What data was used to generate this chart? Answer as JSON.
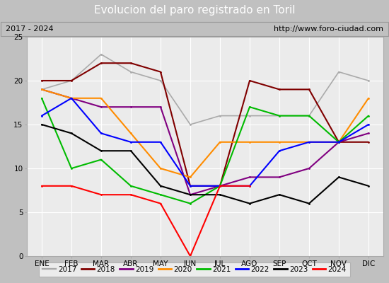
{
  "title": "Evolucion del paro registrado en Toril",
  "subtitle_left": "2017 - 2024",
  "subtitle_right": "http://www.foro-ciudad.com",
  "months": [
    "ENE",
    "FEB",
    "MAR",
    "ABR",
    "MAY",
    "JUN",
    "JUL",
    "AGO",
    "SEP",
    "OCT",
    "NOV",
    "DIC"
  ],
  "ylim": [
    0,
    25
  ],
  "yticks": [
    0,
    5,
    10,
    15,
    20,
    25
  ],
  "series": {
    "2017": {
      "color": "#aaaaaa",
      "linewidth": 1.2,
      "data": [
        19,
        20,
        23,
        21,
        20,
        15,
        16,
        16,
        16,
        16,
        21,
        20
      ]
    },
    "2018": {
      "color": "#800000",
      "linewidth": 1.5,
      "data": [
        20,
        20,
        22,
        22,
        21,
        8,
        8,
        20,
        19,
        19,
        13,
        13
      ]
    },
    "2019": {
      "color": "#800080",
      "linewidth": 1.5,
      "data": [
        19,
        18,
        17,
        17,
        17,
        7,
        8,
        9,
        9,
        10,
        13,
        14
      ]
    },
    "2020": {
      "color": "#ff8c00",
      "linewidth": 1.5,
      "data": [
        19,
        18,
        18,
        14,
        10,
        9,
        13,
        13,
        13,
        13,
        13,
        18
      ]
    },
    "2021": {
      "color": "#00bb00",
      "linewidth": 1.5,
      "data": [
        18,
        10,
        11,
        8,
        7,
        6,
        8,
        17,
        16,
        16,
        13,
        16
      ]
    },
    "2022": {
      "color": "#0000ff",
      "linewidth": 1.5,
      "data": [
        16,
        18,
        14,
        13,
        13,
        8,
        8,
        8,
        12,
        13,
        13,
        15
      ]
    },
    "2023": {
      "color": "#000000",
      "linewidth": 1.5,
      "data": [
        15,
        14,
        12,
        12,
        8,
        7,
        7,
        6,
        7,
        6,
        9,
        8
      ]
    },
    "2024": {
      "color": "#ff0000",
      "linewidth": 1.5,
      "data": [
        8,
        8,
        7,
        7,
        6,
        0,
        8,
        8,
        null,
        null,
        null,
        null
      ]
    }
  },
  "bg_title": "#3399cc",
  "bg_subtitle": "#e0e0e0",
  "bg_plot": "#ebebeb",
  "grid_color": "#ffffff",
  "title_color": "#ffffff",
  "title_fontsize": 11,
  "tick_fontsize": 7.5,
  "legend_fontsize": 7.5
}
